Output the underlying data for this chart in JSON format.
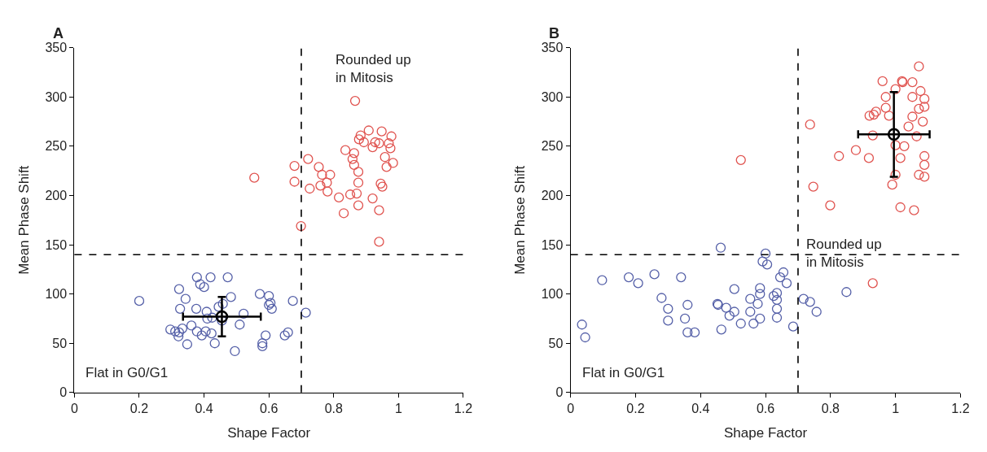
{
  "chart_data": [
    {
      "type": "scatter",
      "xlabel": "Shape Factor",
      "ylabel": "Mean Phase Shift",
      "xlim": [
        0,
        1.2
      ],
      "xticks": [
        0,
        0.2,
        0.4,
        0.6,
        0.8,
        1,
        1.2
      ],
      "ylim": [
        0,
        350
      ],
      "yticks": [
        0,
        50,
        100,
        150,
        200,
        250,
        300,
        350
      ],
      "series": [
        {
          "color": "#5560a8",
          "marker": "circle",
          "x": [
            0.2,
            0.378,
            0.42,
            0.473,
            0.323,
            0.388,
            0.4,
            0.343,
            0.326,
            0.376,
            0.445,
            0.458,
            0.483,
            0.408,
            0.41,
            0.425,
            0.455,
            0.522,
            0.572,
            0.6,
            0.605,
            0.6,
            0.609,
            0.674,
            0.714,
            0.361,
            0.296,
            0.311,
            0.323,
            0.333,
            0.321,
            0.378,
            0.393,
            0.405,
            0.423,
            0.51,
            0.348,
            0.433,
            0.495,
            0.59,
            0.649,
            0.659,
            0.58,
            0.58
          ],
          "values": [
            93,
            117,
            117,
            117,
            105,
            110,
            107,
            95,
            85,
            85,
            87,
            90,
            97,
            82,
            75,
            76,
            73,
            80,
            100,
            98,
            91,
            89,
            85,
            93,
            81,
            68,
            64,
            62,
            61,
            65,
            57,
            62,
            58,
            62,
            60,
            69,
            49,
            50,
            42,
            58,
            58,
            61,
            50,
            47
          ]
        },
        {
          "color": "#e0534f",
          "marker": "circle",
          "x": [
            0.555,
            0.866,
            0.908,
            0.948,
            0.978,
            0.883,
            0.878,
            0.893,
            0.928,
            0.94,
            0.97,
            0.92,
            0.975,
            0.836,
            0.863,
            0.958,
            0.858,
            0.721,
            0.679,
            0.983,
            0.963,
            0.754,
            0.863,
            0.764,
            0.789,
            0.876,
            0.779,
            0.679,
            0.876,
            0.759,
            0.726,
            0.945,
            0.95,
            0.781,
            0.816,
            0.851,
            0.871,
            0.92,
            0.876,
            0.94,
            0.831,
            0.699,
            0.94
          ],
          "values": [
            218,
            296,
            266,
            265,
            260,
            261,
            257,
            254,
            254,
            253,
            253,
            249,
            248,
            246,
            243,
            239,
            237,
            237,
            230,
            233,
            229,
            229,
            231,
            221,
            221,
            224,
            213,
            214,
            213,
            210,
            207,
            212,
            209,
            204,
            198,
            201,
            202,
            197,
            190,
            185,
            182,
            169,
            153
          ]
        },
        {
          "color": "#000000",
          "marker": "circle",
          "x": [
            0.455
          ],
          "values": [
            77
          ],
          "errors": [
            20
          ],
          "xerrors": [
            0.12
          ]
        }
      ],
      "ref_lines": [
        {
          "axis": "x",
          "value": 0.7,
          "color": "#000000",
          "line_style": "dashed"
        },
        {
          "axis": "y",
          "value": 140,
          "color": "#000000",
          "line_style": "dashed"
        }
      ],
      "annotations": [
        "A",
        "Flat in G0/G1",
        "Rounded up\nin Mitosis"
      ]
    },
    {
      "type": "scatter",
      "xlabel": "Shape Factor",
      "ylabel": "Mean Phase Shift",
      "xlim": [
        0,
        1.2
      ],
      "xticks": [
        0,
        0.2,
        0.4,
        0.6,
        0.8,
        1,
        1.2
      ],
      "ylim": [
        0,
        350
      ],
      "yticks": [
        0,
        50,
        100,
        150,
        200,
        250,
        300,
        350
      ],
      "series": [
        {
          "color": "#5560a8",
          "marker": "circle",
          "x": [
            0.462,
            0.6,
            0.591,
            0.605,
            0.097,
            0.179,
            0.208,
            0.258,
            0.34,
            0.655,
            0.645,
            0.665,
            0.28,
            0.3,
            0.36,
            0.3,
            0.352,
            0.36,
            0.382,
            0.452,
            0.454,
            0.464,
            0.504,
            0.479,
            0.504,
            0.489,
            0.524,
            0.553,
            0.583,
            0.583,
            0.553,
            0.576,
            0.583,
            0.563,
            0.625,
            0.635,
            0.635,
            0.635,
            0.635,
            0.685,
            0.717,
            0.737,
            0.757,
            0.849,
            0.035,
            0.045
          ],
          "values": [
            147,
            141,
            133,
            130,
            114,
            117,
            111,
            120,
            117,
            122,
            117,
            111,
            96,
            85,
            89,
            73,
            75,
            61,
            61,
            90,
            89,
            64,
            105,
            86,
            82,
            78,
            70,
            95,
            106,
            100,
            82,
            90,
            75,
            70,
            98,
            101,
            94,
            85,
            76,
            67,
            95,
            92,
            82,
            102,
            69,
            56
          ]
        },
        {
          "color": "#e0534f",
          "marker": "circle",
          "x": [
            0.524,
            0.93,
            0.96,
            0.737,
            0.747,
            0.799,
            0.826,
            0.878,
            0.918,
            0.92,
            0.933,
            0.94,
            0.97,
            0.97,
            0.98,
            1.0,
            1.02,
            0.93,
            1.0,
            1.015,
            1.0,
            0.99,
            1.072,
            1.052,
            1.022,
            1.052,
            1.077,
            1.089,
            1.072,
            1.089,
            1.052,
            1.084,
            1.04,
            1.065,
            1.027,
            1.089,
            1.089,
            1.072,
            1.089,
            1.057,
            1.015
          ],
          "values": [
            236,
            111,
            316,
            272,
            209,
            190,
            240,
            246,
            238,
            281,
            282,
            285,
            300,
            289,
            281,
            308,
            316,
            261,
            251,
            238,
            221,
            211,
            331,
            315,
            315,
            300,
            306,
            298,
            288,
            290,
            280,
            275,
            270,
            260,
            250,
            240,
            231,
            221,
            219,
            185,
            188
          ]
        },
        {
          "color": "#000000",
          "marker": "circle",
          "x": [
            0.995
          ],
          "values": [
            262
          ],
          "errors": [
            43
          ],
          "xerrors": [
            0.11
          ]
        }
      ],
      "ref_lines": [
        {
          "axis": "x",
          "value": 0.7,
          "color": "#000000",
          "line_style": "dashed"
        },
        {
          "axis": "y",
          "value": 140,
          "color": "#000000",
          "line_style": "dashed"
        }
      ],
      "annotations": [
        "B",
        "Flat in G0/G1",
        "Rounded up\nin Mitosis"
      ]
    }
  ]
}
